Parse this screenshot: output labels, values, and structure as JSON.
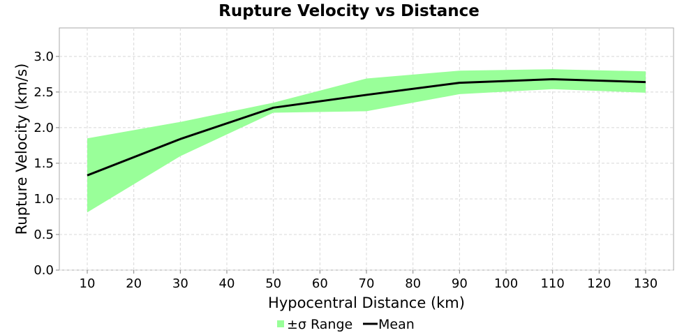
{
  "chart_data": {
    "type": "line",
    "title": "Rupture Velocity vs Distance",
    "xlabel": "Hypocentral Distance (km)",
    "ylabel": "Rupture Velocity (km/s)",
    "x": [
      10,
      30,
      50,
      70,
      90,
      110,
      130
    ],
    "series": [
      {
        "name": "Mean",
        "values": [
          1.33,
          1.84,
          2.28,
          2.46,
          2.63,
          2.68,
          2.64
        ],
        "color": "#000000"
      }
    ],
    "band": {
      "name": "±σ Range",
      "lower": [
        0.81,
        1.6,
        2.21,
        2.23,
        2.47,
        2.54,
        2.49
      ],
      "upper": [
        1.85,
        2.08,
        2.35,
        2.69,
        2.8,
        2.82,
        2.79
      ],
      "color": "#99ff99"
    },
    "xticks": [
      10,
      20,
      30,
      40,
      50,
      60,
      70,
      80,
      90,
      100,
      110,
      120,
      130
    ],
    "yticks": [
      "0.0",
      "0.5",
      "1.0",
      "1.5",
      "2.0",
      "2.5",
      "3.0"
    ],
    "xlim": [
      4,
      136
    ],
    "ylim": [
      0,
      3.4
    ],
    "grid": true,
    "legend": "bottom-center"
  }
}
